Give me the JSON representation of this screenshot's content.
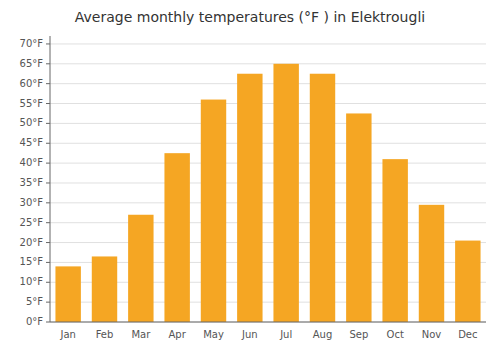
{
  "chart_data": {
    "type": "bar",
    "title": "Average monthly temperatures (°F ) in Elektrougli",
    "categories": [
      "Jan",
      "Feb",
      "Mar",
      "Apr",
      "May",
      "Jun",
      "Jul",
      "Aug",
      "Sep",
      "Oct",
      "Nov",
      "Dec"
    ],
    "values": [
      14,
      16.5,
      27,
      42.5,
      56,
      62.5,
      65,
      62.5,
      52.5,
      41,
      29.5,
      20.5
    ],
    "color": "#F5A623",
    "ylim": [
      0,
      72
    ],
    "yticks": [
      {
        "value": 0,
        "label": "0°F"
      },
      {
        "value": 5,
        "label": "5°F"
      },
      {
        "value": 10,
        "label": "10°F"
      },
      {
        "value": 15,
        "label": "15°F"
      },
      {
        "value": 20,
        "label": "20°F"
      },
      {
        "value": 25,
        "label": "25°F"
      },
      {
        "value": 30,
        "label": "30°F"
      },
      {
        "value": 35,
        "label": "35°F"
      },
      {
        "value": 40,
        "label": "40°F"
      },
      {
        "value": 45,
        "label": "45°F"
      },
      {
        "value": 50,
        "label": "50°F"
      },
      {
        "value": 55,
        "label": "55°F"
      },
      {
        "value": 60,
        "label": "60°F"
      },
      {
        "value": 65,
        "label": "65°F"
      },
      {
        "value": 70,
        "label": "70°F"
      }
    ],
    "grid": true
  }
}
